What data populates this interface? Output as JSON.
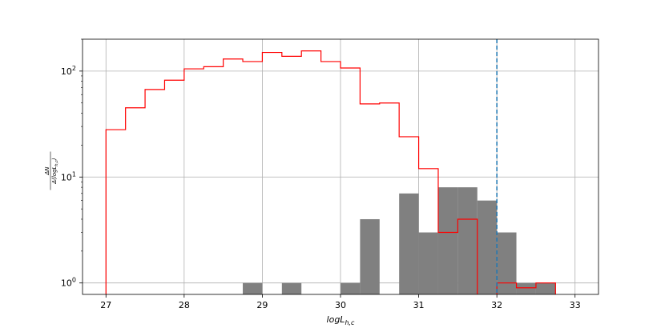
{
  "chart_data": {
    "type": "histogram",
    "xlabel": "logL",
    "xlabel_sub": "h,c",
    "ylabel_num": "ΔN",
    "ylabel_den": "Δ(logL",
    "ylabel_den_sub": "h,c",
    "ylabel_den_close": ")",
    "y_scale": "log",
    "xlim": [
      26.7,
      33.3
    ],
    "ylim": [
      0.78,
      200
    ],
    "x_ticks": [
      {
        "value": 27,
        "label": "27"
      },
      {
        "value": 28,
        "label": "28"
      },
      {
        "value": 29,
        "label": "29"
      },
      {
        "value": 30,
        "label": "30"
      },
      {
        "value": 31,
        "label": "31"
      },
      {
        "value": 32,
        "label": "32"
      },
      {
        "value": 33,
        "label": "33"
      }
    ],
    "y_ticks": [
      {
        "value": 1,
        "base": "10",
        "exp": "0"
      },
      {
        "value": 10,
        "base": "10",
        "exp": "1"
      },
      {
        "value": 100,
        "base": "10",
        "exp": "2"
      }
    ],
    "grid": true,
    "bin_width": 0.25,
    "series": [
      {
        "style": "bars",
        "color": "#808080",
        "bins": [
          {
            "x": 28.75,
            "value": 1
          },
          {
            "x": 29.25,
            "value": 1
          },
          {
            "x": 30.0,
            "value": 1
          },
          {
            "x": 30.25,
            "value": 4
          },
          {
            "x": 30.75,
            "value": 7
          },
          {
            "x": 31.0,
            "value": 3
          },
          {
            "x": 31.25,
            "value": 8
          },
          {
            "x": 31.5,
            "value": 8
          },
          {
            "x": 31.75,
            "value": 6
          },
          {
            "x": 32.0,
            "value": 3
          },
          {
            "x": 32.25,
            "value": 1
          },
          {
            "x": 32.5,
            "value": 1
          }
        ]
      },
      {
        "style": "step",
        "color": "#ff0000",
        "x_start": 27.0,
        "values": [
          28,
          45,
          67,
          82,
          105,
          110,
          130,
          123,
          150,
          138,
          155,
          123,
          107,
          49,
          50,
          24,
          12,
          3,
          4,
          0,
          1,
          0.9,
          1
        ]
      }
    ],
    "vline": {
      "x": 32.0,
      "color": "#1f77b4",
      "style": "dashed"
    }
  }
}
